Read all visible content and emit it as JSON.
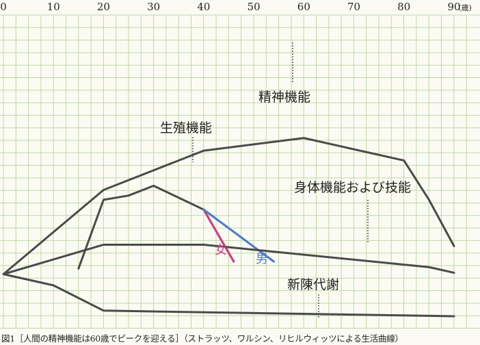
{
  "figure": {
    "caption": "図1［人間の精神機能は60歳でピークを迎える］（ストラッツ、ワルシン、リヒルウィッツによる生活曲線）"
  },
  "chart_data": {
    "type": "line",
    "title": "",
    "xlabel": "",
    "ylabel": "",
    "x_unit": "(歳)",
    "xlim": [
      0,
      90
    ],
    "x_ticks": [
      0,
      10,
      20,
      30,
      40,
      50,
      60,
      70,
      80,
      90
    ],
    "grid": true,
    "colors": {
      "background": "#fbfbf3",
      "grid": "#bfd7a6",
      "main_lines": "#4a4a4a",
      "female": "#d23c86",
      "male": "#4f7cc9"
    },
    "series": [
      {
        "name": "精神機能",
        "color": "#4a4a4a",
        "points": [
          [
            0,
            30
          ],
          [
            20,
            90
          ],
          [
            40,
            118
          ],
          [
            60,
            127
          ],
          [
            80,
            111
          ],
          [
            85,
            83
          ],
          [
            90,
            50
          ]
        ]
      },
      {
        "name": "生殖機能",
        "color": "#4a4a4a",
        "points": [
          [
            15,
            34
          ],
          [
            20,
            83
          ],
          [
            25,
            86
          ],
          [
            30,
            93
          ],
          [
            40,
            76
          ]
        ]
      },
      {
        "name": "女",
        "color": "#d23c86",
        "points": [
          [
            40,
            76
          ],
          [
            46,
            39
          ]
        ]
      },
      {
        "name": "男",
        "color": "#4f7cc9",
        "points": [
          [
            40,
            76
          ],
          [
            54,
            39
          ]
        ]
      },
      {
        "name": "身体機能および技能",
        "color": "#4a4a4a",
        "points": [
          [
            0,
            30
          ],
          [
            20,
            51
          ],
          [
            40,
            51
          ],
          [
            85,
            35
          ],
          [
            90,
            31
          ]
        ]
      },
      {
        "name": "新陳代謝",
        "color": "#4a4a4a",
        "points": [
          [
            0,
            30
          ],
          [
            10,
            22
          ],
          [
            20,
            4
          ],
          [
            90,
            0
          ]
        ]
      }
    ]
  }
}
